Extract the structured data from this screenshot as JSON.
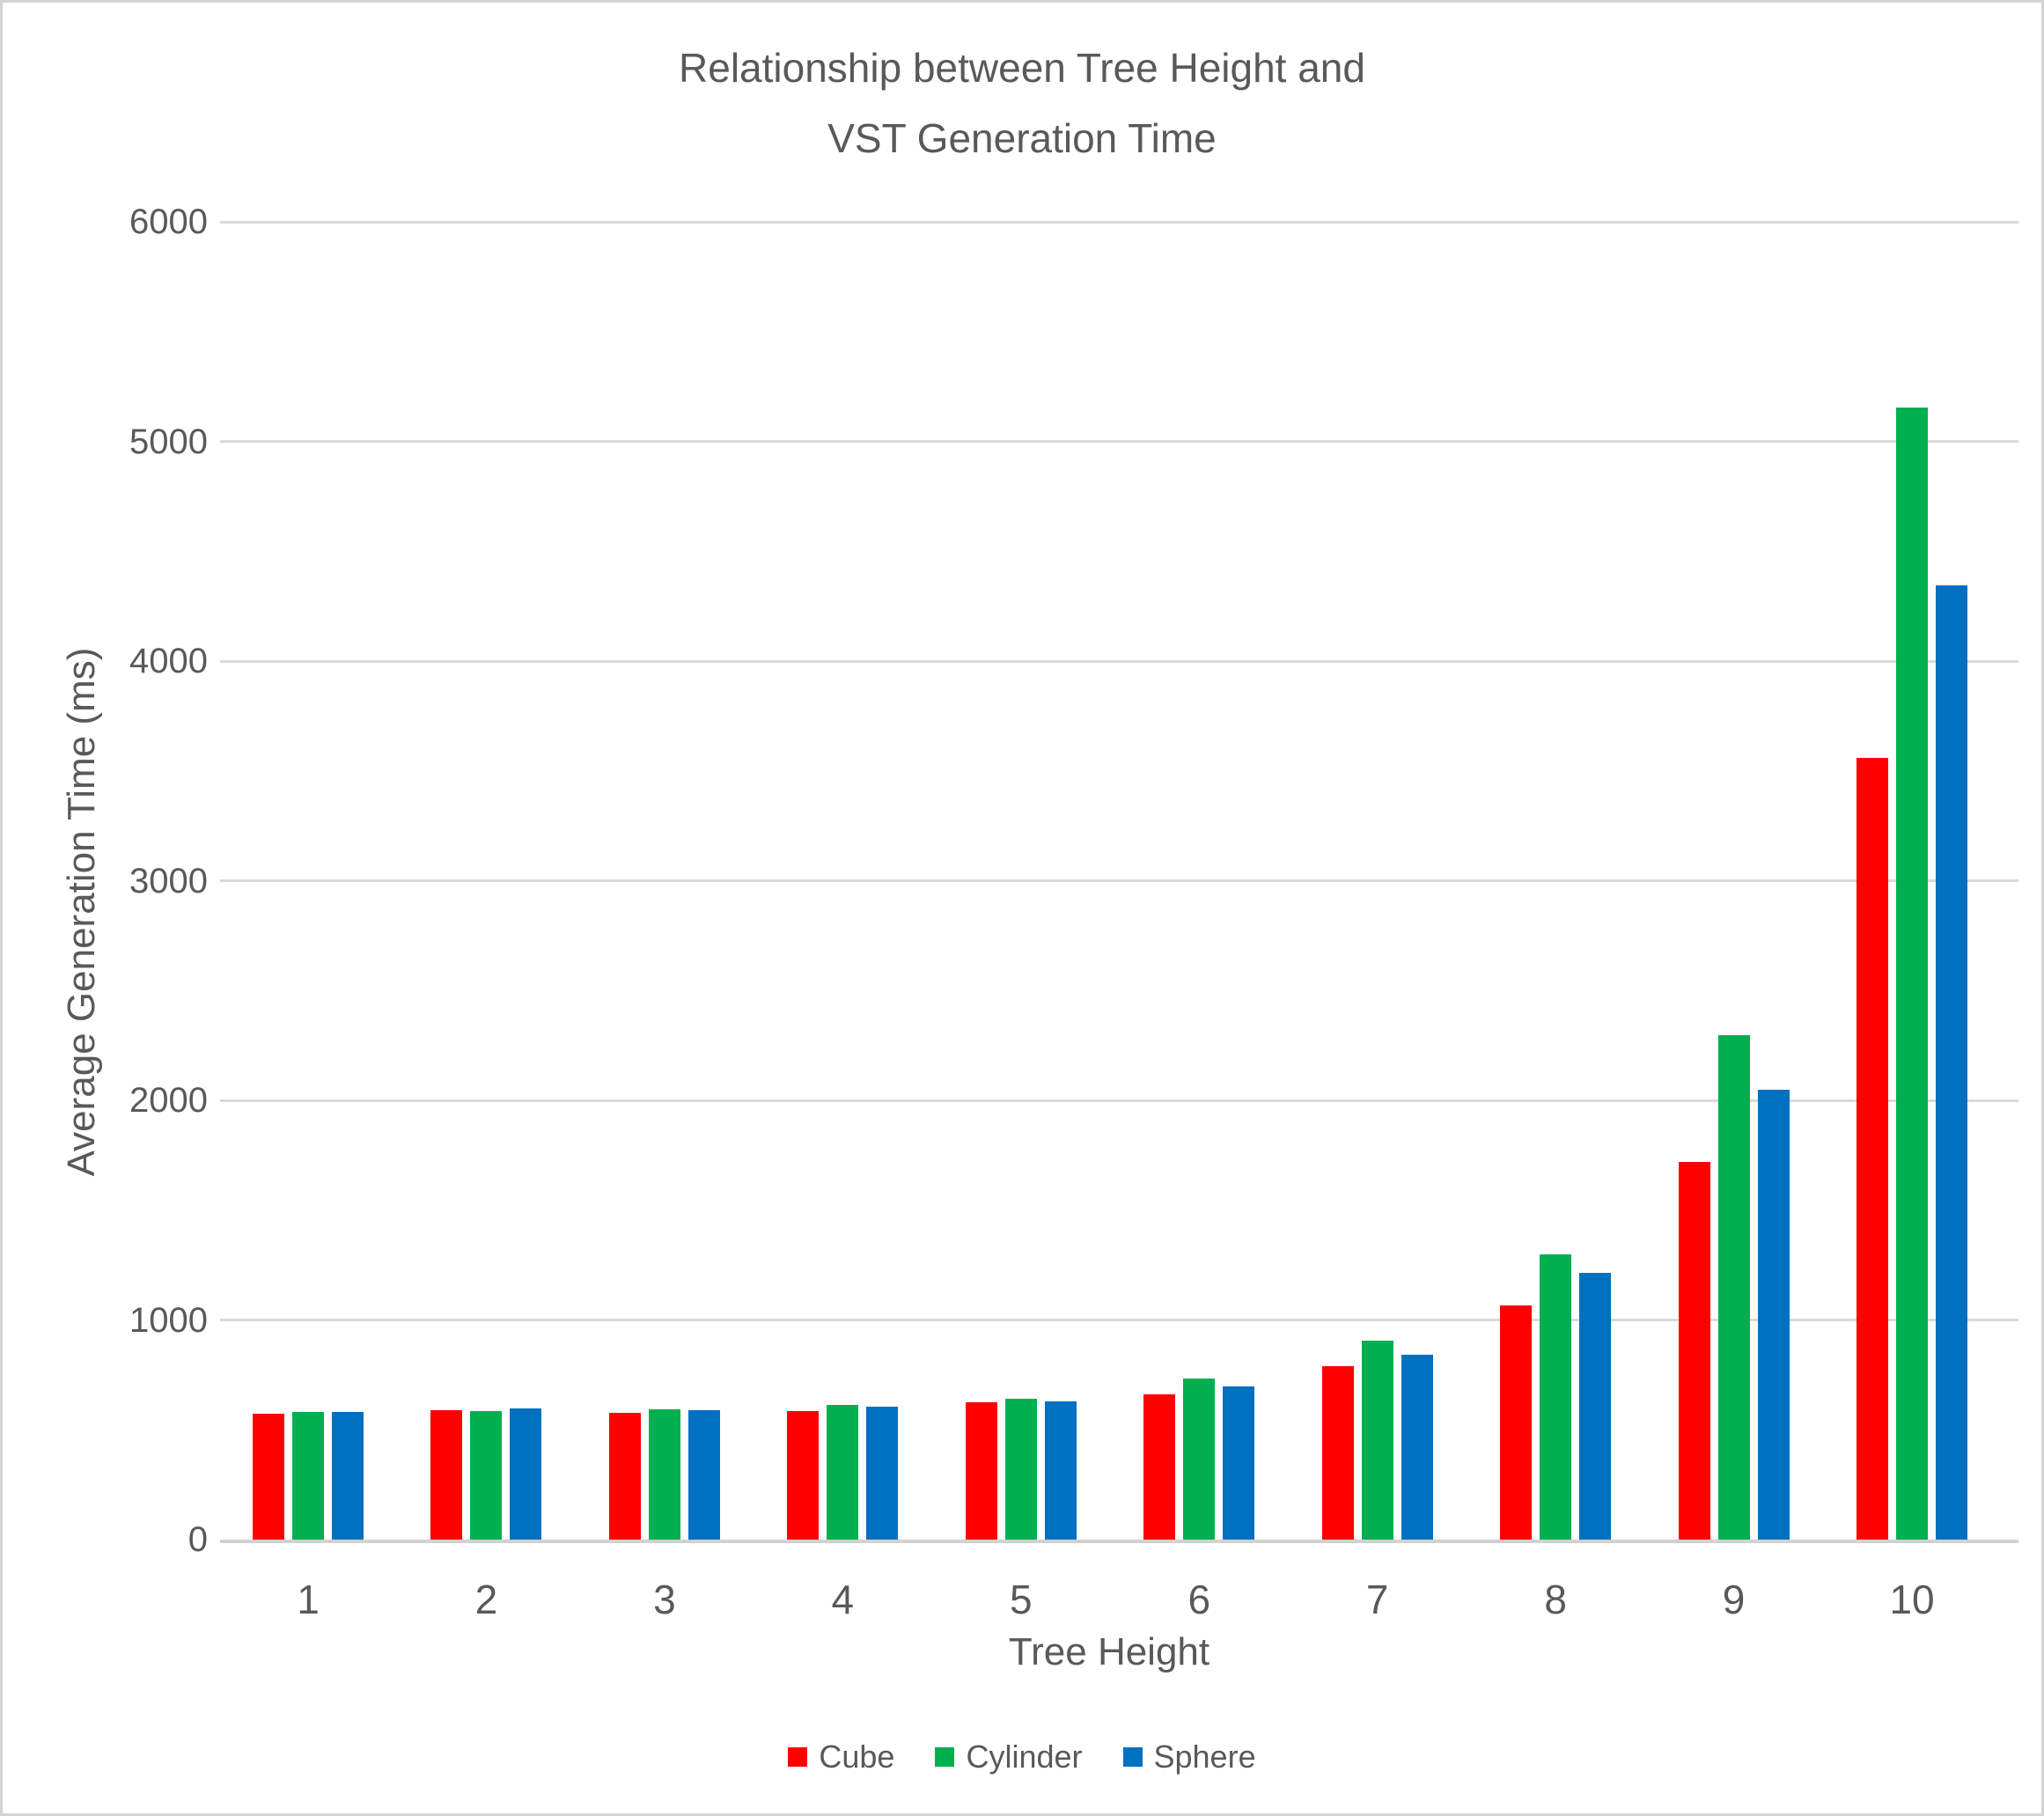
{
  "chart_data": {
    "type": "bar",
    "title": "Relationship between Tree Height and VST Generation Time",
    "title_lines": [
      "Relationship between Tree Height and",
      "VST Generation Time"
    ],
    "xlabel": "Tree Height",
    "ylabel": "Average Generation Time (ms)",
    "categories": [
      "1",
      "2",
      "3",
      "4",
      "5",
      "6",
      "7",
      "8",
      "9",
      "10"
    ],
    "series": [
      {
        "name": "Cube",
        "color": "#FF0000",
        "values": [
          575,
          590,
          578,
          585,
          625,
          662,
          788,
          1068,
          1720,
          3560
        ]
      },
      {
        "name": "Cylinder",
        "color": "#00B050",
        "values": [
          580,
          585,
          592,
          612,
          640,
          735,
          905,
          1300,
          2298,
          5155
        ]
      },
      {
        "name": "Sphere",
        "color": "#0070C0",
        "values": [
          580,
          598,
          588,
          605,
          630,
          698,
          842,
          1215,
          2048,
          4345
        ]
      }
    ],
    "ylim": [
      0,
      6000
    ],
    "y_ticks": [
      0,
      1000,
      2000,
      3000,
      4000,
      5000,
      6000
    ],
    "grid": true,
    "legend_position": "bottom",
    "legend": [
      "Cube",
      "Cylinder",
      "Sphere"
    ]
  },
  "colors": {
    "text": "#595959",
    "gridline": "#D9D9D9",
    "axis_line": "#D1D1D1",
    "background": "#FFFFFF",
    "border": "#D4D4D4"
  }
}
